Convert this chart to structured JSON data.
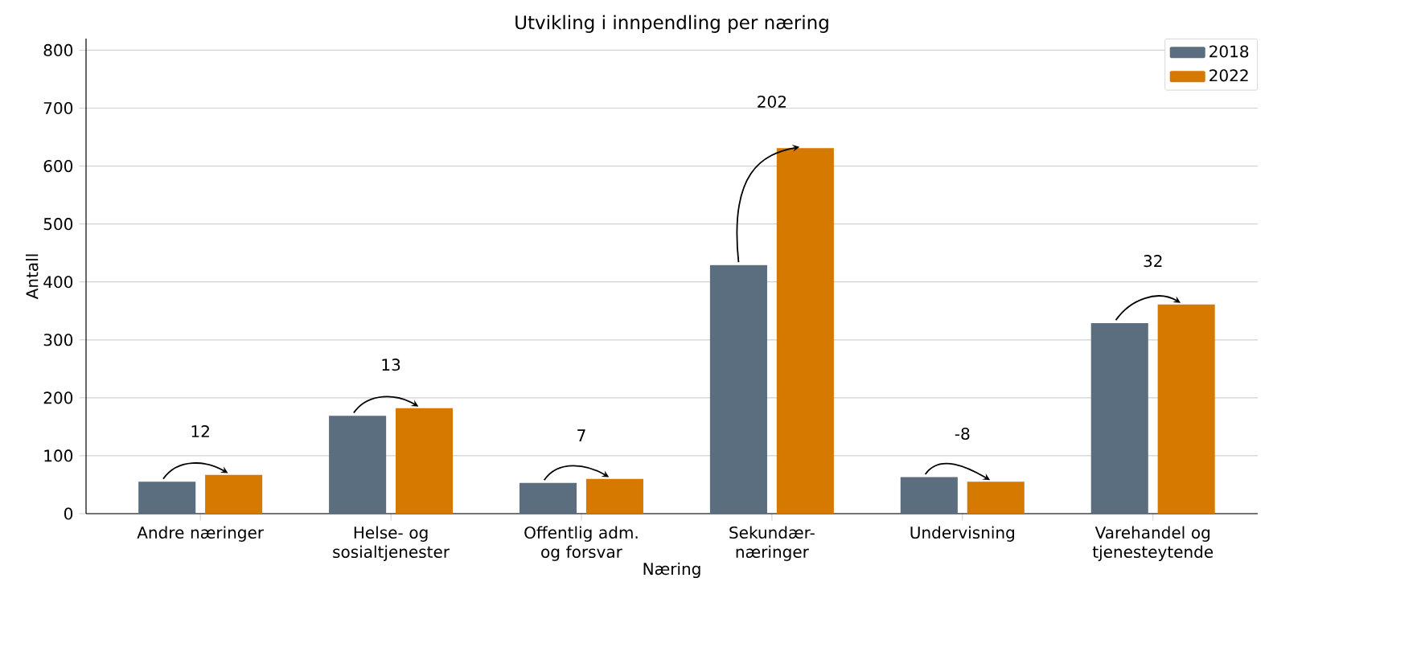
{
  "chart_data": {
    "type": "bar",
    "title": "Utvikling i innpendling per næring",
    "xlabel": "Næring",
    "ylabel": "Antall",
    "categories": [
      "Andre næringer",
      "Helse- og sosialtjenester",
      "Offentlig adm. og forsvar",
      "Sekundær-næringer",
      "Undervisning",
      "Varehandel og tjenesteytende"
    ],
    "series": [
      {
        "name": "2018",
        "color": "#5a6e80",
        "values": [
          55,
          169,
          53,
          429,
          63,
          329
        ]
      },
      {
        "name": "2022",
        "color": "#d67900",
        "values": [
          67,
          182,
          60,
          631,
          55,
          361
        ]
      }
    ],
    "annotations": [
      "12",
      "13",
      "7",
      "202",
      "-8",
      "32"
    ],
    "ylim": [
      0,
      820
    ],
    "yticks": [
      0,
      100,
      200,
      300,
      400,
      500,
      600,
      700,
      800
    ],
    "grid": "y",
    "legend": "top right"
  }
}
